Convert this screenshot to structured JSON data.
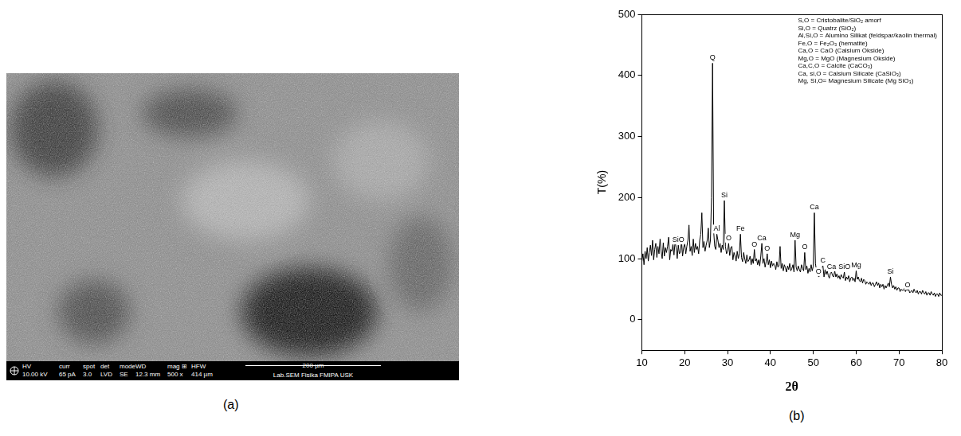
{
  "panel_labels": [
    "(a)",
    "(b)"
  ],
  "sem_image": {
    "info_bar": [
      {
        "label": "HV",
        "value": "10.00 kV"
      },
      {
        "label": "curr",
        "value": "65 pA"
      },
      {
        "label": "spot",
        "value": "3.0"
      },
      {
        "label": "det",
        "value": "LVD"
      },
      {
        "label": "mode",
        "value": "SE"
      },
      {
        "label": "WD",
        "value": "12.3 mm"
      },
      {
        "label": "mag ⊞",
        "value": "500 x"
      },
      {
        "label": "HFW",
        "value": "414 µm"
      }
    ],
    "scale_bar": "200 µm",
    "lab": "Lab.SEM Fisika FMIPA USK"
  },
  "chart_data": {
    "type": "line",
    "x_label": "2θ",
    "y_label": "T(%)",
    "color": "#000000",
    "grid": false,
    "xlim": [
      10,
      80
    ],
    "xticks": [
      10,
      20,
      30,
      40,
      50,
      60,
      70,
      80
    ],
    "ylim": [
      -50,
      500
    ],
    "yticks": [
      0,
      100,
      200,
      300,
      400,
      500
    ],
    "annotations": [
      "S,O = Cristobalite/SiO₂ amorf",
      "Si,O = Quatrz (SiO₂)",
      "Al,Si,O = Alumino Silikat (feldspar/kaolin thermal)",
      "Fe,O = Fe₂O₃ (hematite)",
      "Ca,O = CaO (Calsium Okside)",
      "Mg,O = MgO (Magnesium Okside)",
      "Ca,C,O = Calcite (CaCO₃)",
      "Ca, si,O = Calsium Silicate (CaSiO₃)",
      "Mg, Si,O= Magnesium Silicate (Mg SiO₃)"
    ],
    "peak_labels": [
      {
        "text": "SiO",
        "x": 18.5,
        "y": 122
      },
      {
        "text": "Q",
        "x": 26.5,
        "y": 420
      },
      {
        "text": "Al",
        "x": 27.5,
        "y": 140
      },
      {
        "text": "Si",
        "x": 29.25,
        "y": 195
      },
      {
        "text": "O",
        "x": 30.25,
        "y": 125
      },
      {
        "text": "Fe",
        "x": 33,
        "y": 140
      },
      {
        "text": "O",
        "x": 36.25,
        "y": 115
      },
      {
        "text": "Ca",
        "x": 38,
        "y": 125
      },
      {
        "text": "O",
        "x": 39.25,
        "y": 108
      },
      {
        "text": "Mg",
        "x": 45.75,
        "y": 130
      },
      {
        "text": "O",
        "x": 48,
        "y": 110
      },
      {
        "text": "Ca",
        "x": 50.25,
        "y": 175
      },
      {
        "text": "O",
        "x": 51.25,
        "y": 70
      },
      {
        "text": "C",
        "x": 52.25,
        "y": 88
      },
      {
        "text": "Ca",
        "x": 54.25,
        "y": 78
      },
      {
        "text": "SiO",
        "x": 57.25,
        "y": 78
      },
      {
        "text": "Mg",
        "x": 60,
        "y": 80
      },
      {
        "text": "Si",
        "x": 68,
        "y": 70
      },
      {
        "text": "O",
        "x": 72,
        "y": 48
      }
    ],
    "x": [
      10,
      10.25,
      10.5,
      10.75,
      11,
      11.25,
      11.5,
      11.75,
      12,
      12.25,
      12.5,
      12.75,
      13,
      13.25,
      13.5,
      13.75,
      14,
      14.25,
      14.5,
      14.75,
      15,
      15.25,
      15.5,
      15.75,
      16,
      16.25,
      16.5,
      16.75,
      17,
      17.25,
      17.5,
      17.75,
      18,
      18.25,
      18.5,
      18.75,
      19,
      19.25,
      19.5,
      19.75,
      20,
      20.25,
      20.5,
      20.75,
      21,
      21.25,
      21.5,
      21.75,
      22,
      22.25,
      22.5,
      22.75,
      23,
      23.25,
      23.5,
      23.75,
      24,
      24.25,
      24.5,
      24.75,
      25,
      25.25,
      25.5,
      25.75,
      26,
      26.25,
      26.5,
      26.75,
      27,
      27.25,
      27.5,
      27.75,
      28,
      28.25,
      28.5,
      28.75,
      29,
      29.25,
      29.5,
      29.75,
      30,
      30.25,
      30.5,
      30.75,
      31,
      31.25,
      31.5,
      31.75,
      32,
      32.25,
      32.5,
      32.75,
      33,
      33.25,
      33.5,
      33.75,
      34,
      34.25,
      34.5,
      34.75,
      35,
      35.25,
      35.5,
      35.75,
      36,
      36.25,
      36.5,
      36.75,
      37,
      37.25,
      37.5,
      37.75,
      38,
      38.25,
      38.5,
      38.75,
      39,
      39.25,
      39.5,
      39.75,
      40,
      40.25,
      40.5,
      40.75,
      41,
      41.25,
      41.5,
      41.75,
      42,
      42.25,
      42.5,
      42.75,
      43,
      43.25,
      43.5,
      43.75,
      44,
      44.25,
      44.5,
      44.75,
      45,
      45.25,
      45.5,
      45.75,
      46,
      46.25,
      46.5,
      46.75,
      47,
      47.25,
      47.5,
      47.75,
      48,
      48.25,
      48.5,
      48.75,
      49,
      49.25,
      49.5,
      49.75,
      50,
      50.25,
      50.5,
      50.75,
      51,
      51.25,
      51.5,
      51.75,
      52,
      52.25,
      52.5,
      52.75,
      53,
      53.25,
      53.5,
      53.75,
      54,
      54.25,
      54.5,
      54.75,
      55,
      55.25,
      55.5,
      55.75,
      56,
      56.25,
      56.5,
      56.75,
      57,
      57.25,
      57.5,
      57.75,
      58,
      58.25,
      58.5,
      58.75,
      59,
      59.25,
      59.5,
      59.75,
      60,
      60.25,
      60.5,
      60.75,
      61,
      61.25,
      61.5,
      61.75,
      62,
      62.25,
      62.5,
      62.75,
      63,
      63.25,
      63.5,
      63.75,
      64,
      64.25,
      64.5,
      64.75,
      65,
      65.25,
      65.5,
      65.75,
      66,
      66.25,
      66.5,
      66.75,
      67,
      67.25,
      67.5,
      67.75,
      68,
      68.25,
      68.5,
      68.75,
      69,
      69.25,
      69.5,
      69.75,
      70,
      70.25,
      70.5,
      70.75,
      71,
      71.25,
      71.5,
      71.75,
      72,
      72.25,
      72.5,
      72.75,
      73,
      73.25,
      73.5,
      73.75,
      74,
      74.25,
      74.5,
      74.75,
      75,
      75.25,
      75.5,
      75.75,
      76,
      76.25,
      76.5,
      76.75,
      77,
      77.25,
      77.5,
      77.75,
      78,
      78.25,
      78.5,
      78.75,
      79,
      79.25,
      79.5,
      79.75,
      80
    ],
    "values": [
      95,
      108,
      90,
      112,
      100,
      118,
      96,
      110,
      122,
      105,
      130,
      98,
      115,
      125,
      102,
      120,
      108,
      132,
      112,
      100,
      126,
      104,
      118,
      110,
      120,
      135,
      98,
      115,
      112,
      124,
      106,
      128,
      118,
      100,
      122,
      108,
      110,
      130,
      104,
      118,
      125,
      108,
      120,
      130,
      155,
      112,
      120,
      105,
      132,
      110,
      125,
      115,
      120,
      108,
      130,
      140,
      175,
      118,
      128,
      112,
      122,
      130,
      150,
      118,
      130,
      200,
      420,
      145,
      120,
      115,
      140,
      130,
      118,
      125,
      110,
      122,
      115,
      195,
      120,
      108,
      112,
      125,
      105,
      118,
      120,
      98,
      110,
      104,
      96,
      112,
      100,
      108,
      140,
      102,
      95,
      110,
      100,
      92,
      106,
      95,
      98,
      104,
      90,
      100,
      92,
      115,
      96,
      100,
      90,
      98,
      88,
      104,
      125,
      92,
      100,
      86,
      95,
      108,
      90,
      98,
      85,
      96,
      88,
      92,
      90,
      82,
      95,
      86,
      88,
      120,
      84,
      92,
      80,
      90,
      85,
      78,
      88,
      82,
      92,
      80,
      84,
      90,
      78,
      130,
      86,
      80,
      88,
      82,
      78,
      90,
      84,
      80,
      110,
      82,
      88,
      76,
      84,
      78,
      90,
      80,
      88,
      175,
      92,
      80,
      76,
      70,
      72,
      80,
      85,
      88,
      70,
      82,
      74,
      80,
      72,
      68,
      76,
      78,
      72,
      70,
      80,
      70,
      75,
      68,
      72,
      66,
      74,
      70,
      68,
      78,
      64,
      70,
      66,
      72,
      62,
      68,
      70,
      64,
      68,
      62,
      80,
      66,
      70,
      64,
      62,
      68,
      60,
      66,
      64,
      58,
      62,
      60,
      58,
      62,
      56,
      60,
      60,
      54,
      58,
      62,
      56,
      60,
      52,
      58,
      54,
      58,
      50,
      56,
      52,
      56,
      60,
      54,
      70,
      58,
      52,
      56,
      50,
      54,
      48,
      52,
      52,
      46,
      50,
      48,
      48,
      52,
      46,
      50,
      48,
      50,
      44,
      46,
      48,
      44,
      50,
      46,
      44,
      48,
      42,
      46,
      46,
      42,
      48,
      44,
      42,
      46,
      40,
      44,
      44,
      40,
      46,
      42,
      40,
      44,
      38,
      42,
      42,
      38,
      44,
      40,
      40
    ]
  }
}
